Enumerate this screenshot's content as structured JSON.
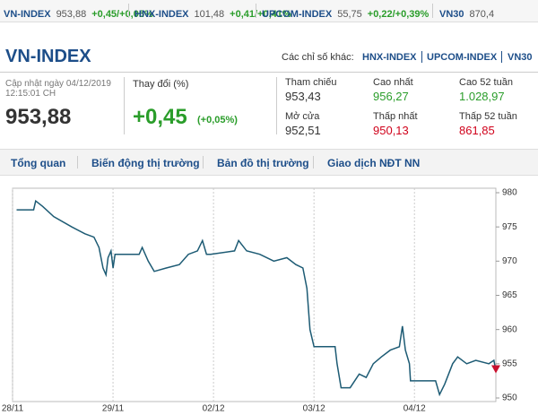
{
  "ticker": [
    {
      "name": "VN-INDEX",
      "value": "953,88",
      "change": "+0,45/+0,05%"
    },
    {
      "name": "HNX-INDEX",
      "value": "101,48",
      "change": "+0,41/+0,41%"
    },
    {
      "name": "UPCOM-INDEX",
      "value": "55,75",
      "change": "+0,22/+0,39%"
    },
    {
      "name": "VN30",
      "value": "870,4"
    }
  ],
  "header": {
    "title": "VN-INDEX",
    "others_label": "Các chỉ số khác:",
    "links": [
      "HNX-INDEX",
      "UPCOM-INDEX",
      "VN30"
    ]
  },
  "summary": {
    "updated": "Cập nhật ngày 04/12/2019",
    "time": "12:15:01 CH",
    "value": "953,88",
    "change_label": "Thay đổi (%)",
    "change": "+0,45",
    "change_pct": "(+0,05%)"
  },
  "stats": [
    {
      "label": "Tham chiếu",
      "value": "953,43"
    },
    {
      "label": "Mở cửa",
      "value": "952,51"
    },
    {
      "label": "Cao nhất",
      "value": "956,27"
    },
    {
      "label": "Thấp nhất",
      "value": "950,13"
    },
    {
      "label": "Cao 52 tuần",
      "value": "1.028,97"
    },
    {
      "label": "Thấp 52 tuần",
      "value": "861,85"
    }
  ],
  "tabs": [
    "Tổng quan",
    "Biến động thị trường",
    "Bản đồ thị trường",
    "Giao dịch NĐT NN"
  ],
  "chart_data": {
    "type": "line",
    "color": "#1d5b74",
    "grid": true,
    "x": [
      0.04,
      0.21,
      0.23,
      0.3,
      0.41,
      0.59,
      0.72,
      0.81,
      0.86,
      0.9,
      0.93,
      0.95,
      0.98,
      1.0,
      1.02,
      1.21,
      1.26,
      1.29,
      1.35,
      1.41,
      1.53,
      1.66,
      1.75,
      1.84,
      1.89,
      1.93,
      1.97,
      2.21,
      2.25,
      2.33,
      2.46,
      2.6,
      2.73,
      2.82,
      2.89,
      2.93,
      2.96,
      3.0,
      3.21,
      3.23,
      3.27,
      3.36,
      3.45,
      3.52,
      3.59,
      3.67,
      3.76,
      3.85,
      3.88,
      3.91,
      3.95,
      3.96,
      4.21,
      4.25,
      4.3,
      4.38,
      4.43,
      4.52,
      4.61,
      4.74,
      4.79,
      4.81
    ],
    "values": [
      977.5,
      977.5,
      978.8,
      978,
      976.5,
      975,
      974,
      973.5,
      972,
      969,
      968,
      970.5,
      971.5,
      969,
      971,
      971,
      971,
      972,
      970,
      968.5,
      969,
      969.5,
      971,
      971.5,
      973,
      971,
      971,
      971.5,
      973,
      971.5,
      971,
      970,
      970.5,
      969.5,
      969,
      966,
      960,
      957.5,
      957.5,
      955,
      951.5,
      951.5,
      953.5,
      953,
      955,
      956,
      957,
      957.5,
      960.5,
      957,
      955,
      952.5,
      952.5,
      950.5,
      952,
      955,
      956,
      955,
      955.5,
      955,
      955.5,
      954
    ],
    "xlim": [
      0,
      4.81
    ],
    "xticks": [
      {
        "value": 0,
        "label": "28/11"
      },
      {
        "value": 1,
        "label": "29/11"
      },
      {
        "value": 2,
        "label": "02/12"
      },
      {
        "value": 3,
        "label": "03/12"
      },
      {
        "value": 4,
        "label": "04/12"
      }
    ],
    "ylim": [
      950,
      980
    ],
    "yticks": [
      950,
      955,
      960,
      965,
      970,
      975,
      980
    ]
  }
}
